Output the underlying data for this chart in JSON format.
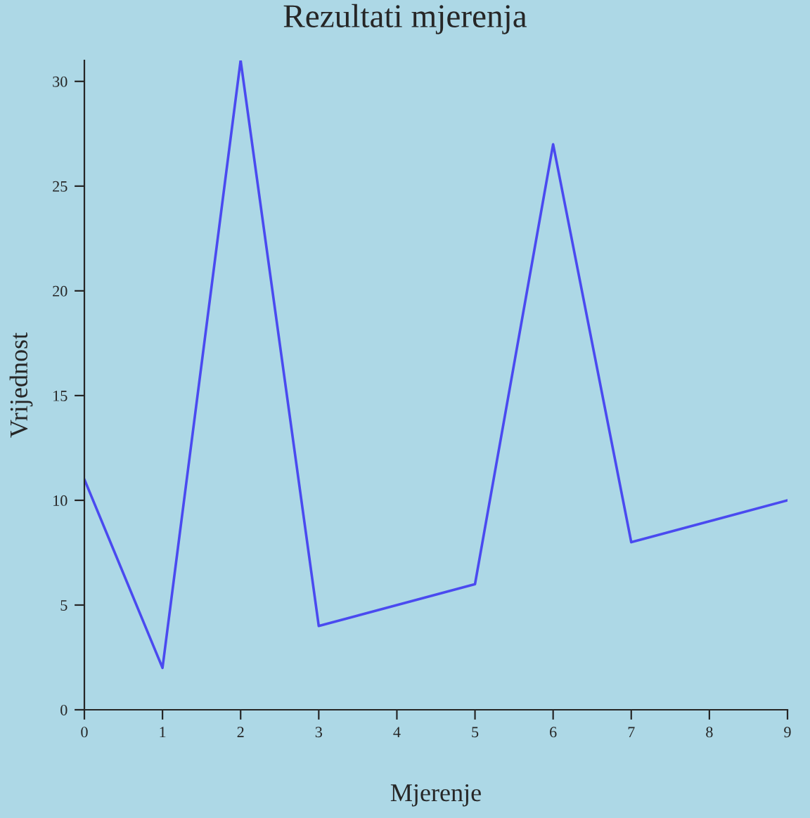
{
  "chart_data": {
    "type": "line",
    "title": "Rezultati mjerenja",
    "xlabel": "Mjerenje",
    "ylabel": "Vrijednost",
    "x": [
      0,
      1,
      2,
      3,
      4,
      5,
      6,
      7,
      8,
      9
    ],
    "series": [
      {
        "color": "#4a4af0",
        "values": [
          11,
          2,
          31,
          4,
          5,
          6,
          27,
          8,
          9,
          10
        ]
      }
    ],
    "xlim": [
      0,
      9
    ],
    "xticks": [
      0,
      1,
      2,
      3,
      4,
      5,
      6,
      7,
      8,
      9
    ],
    "ylim": [
      0,
      31
    ],
    "yticks": [
      0,
      5,
      10,
      15,
      20,
      25,
      30
    ],
    "grid": false,
    "legend": false,
    "marker": "none",
    "line_style": "solid"
  }
}
